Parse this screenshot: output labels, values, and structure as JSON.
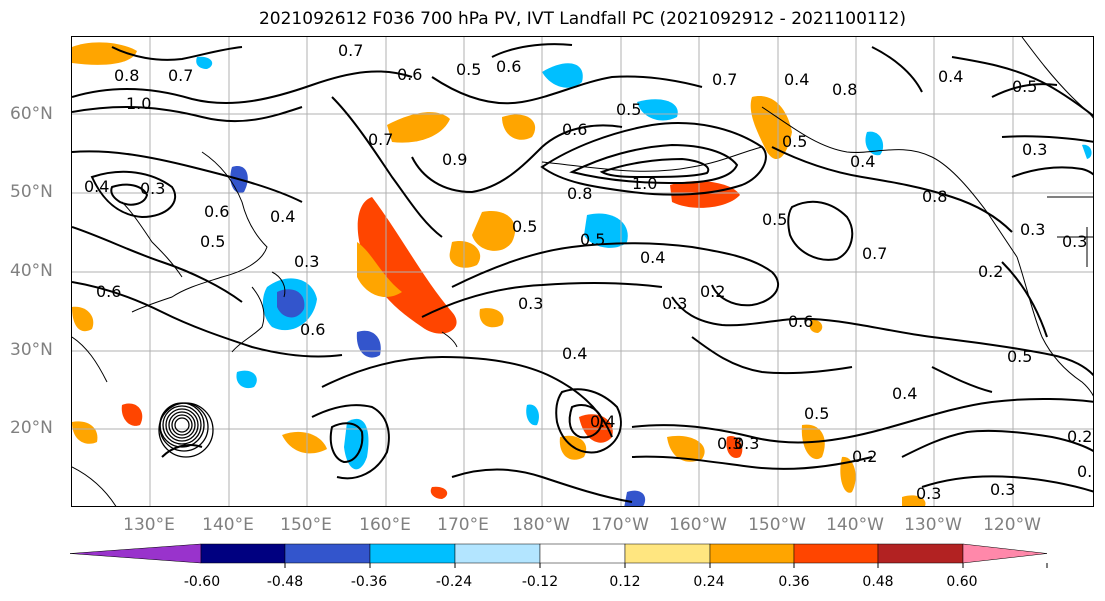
{
  "title": "2021092612 F036 700 hPa PV, IVT Landfall PC (2021092912 - 2021100112)",
  "axes": {
    "lat_labels": [
      "60°N",
      "50°N",
      "40°N",
      "30°N",
      "20°N"
    ],
    "lon_labels": [
      "130°E",
      "140°E",
      "150°E",
      "160°E",
      "170°E",
      "180°W",
      "170°W",
      "160°W",
      "150°W",
      "140°W",
      "130°W",
      "120°W"
    ]
  },
  "colorbar": {
    "labels": [
      "-0.60",
      "-0.48",
      "-0.36",
      "-0.24",
      "-0.12",
      "0.12",
      "0.24",
      "0.36",
      "0.48",
      "0.60"
    ],
    "colors": [
      "#9933cc",
      "#000080",
      "#3355cc",
      "#00bfff",
      "#b3e5ff",
      "#ffffff",
      "#ffe680",
      "#ffa500",
      "#ff4500",
      "#b22222",
      "#ff88aa"
    ]
  },
  "contour_labels": [
    {
      "text": "0.7"
    },
    {
      "text": "0.7"
    },
    {
      "text": "0.8"
    },
    {
      "text": "1.0"
    },
    {
      "text": "0.6"
    },
    {
      "text": "0.5"
    },
    {
      "text": "0.6"
    },
    {
      "text": "0.7"
    },
    {
      "text": "0.9"
    },
    {
      "text": "0.4"
    },
    {
      "text": "0.3"
    },
    {
      "text": "0.6"
    },
    {
      "text": "0.5"
    },
    {
      "text": "0.4"
    },
    {
      "text": "0.3"
    },
    {
      "text": "0.6"
    },
    {
      "text": "0.6"
    },
    {
      "text": "0.5"
    },
    {
      "text": "0.6"
    },
    {
      "text": "0.5"
    },
    {
      "text": "0.8"
    },
    {
      "text": "1.0"
    },
    {
      "text": "0.5"
    },
    {
      "text": "0.4"
    },
    {
      "text": "0.3"
    },
    {
      "text": "0.2"
    },
    {
      "text": "0.3"
    },
    {
      "text": "0.6"
    },
    {
      "text": "0.4"
    },
    {
      "text": "0.4"
    },
    {
      "text": "0.3"
    },
    {
      "text": "0.7"
    },
    {
      "text": "0.4"
    },
    {
      "text": "0.8"
    },
    {
      "text": "0.4"
    },
    {
      "text": "0.5"
    },
    {
      "text": "0.8"
    },
    {
      "text": "0.7"
    },
    {
      "text": "0.5"
    },
    {
      "text": "0.4"
    },
    {
      "text": "0.2"
    },
    {
      "text": "0.5"
    },
    {
      "text": "0.3"
    },
    {
      "text": "0.3"
    },
    {
      "text": "0.2"
    },
    {
      "text": "0.3"
    },
    {
      "text": "0.3"
    },
    {
      "text": "0.3"
    },
    {
      "text": "0.1"
    },
    {
      "text": "0.2"
    },
    {
      "text": "0.5"
    },
    {
      "text": "0.4"
    },
    {
      "text": "0.5"
    },
    {
      "text": "0.3"
    }
  ]
}
